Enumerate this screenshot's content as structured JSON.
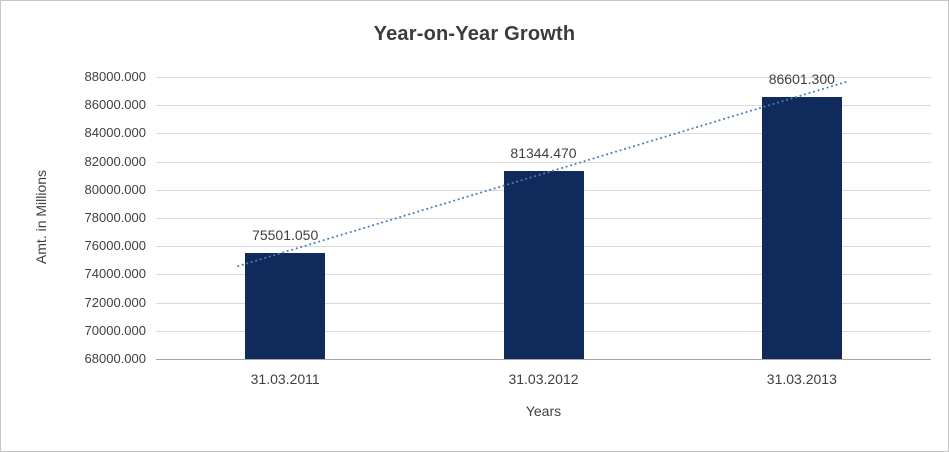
{
  "chart_data": {
    "type": "bar",
    "title": "Year-on-Year Growth",
    "xlabel": "Years",
    "ylabel": "Amt. in Millions",
    "categories": [
      "31.03.2011",
      "31.03.2012",
      "31.03.2013"
    ],
    "values": [
      75501.05,
      81344.47,
      86601.3
    ],
    "value_labels": [
      "75501.050",
      "81344.470",
      "86601.300"
    ],
    "ylim": [
      68000,
      88000
    ],
    "ytick_step": 2000,
    "ytick_labels": [
      "68000.000",
      "70000.000",
      "72000.000",
      "74000.000",
      "76000.000",
      "78000.000",
      "80000.000",
      "82000.000",
      "84000.000",
      "86000.000",
      "88000.000"
    ],
    "grid": true,
    "legend": "none",
    "trendline": true,
    "colors": {
      "bar": "#112a5c",
      "trendline": "#4a7ebc",
      "text": "#404040",
      "gridline": "#d9d9d9",
      "axis": "#a6a6a6",
      "border": "#c6c6c6"
    }
  }
}
